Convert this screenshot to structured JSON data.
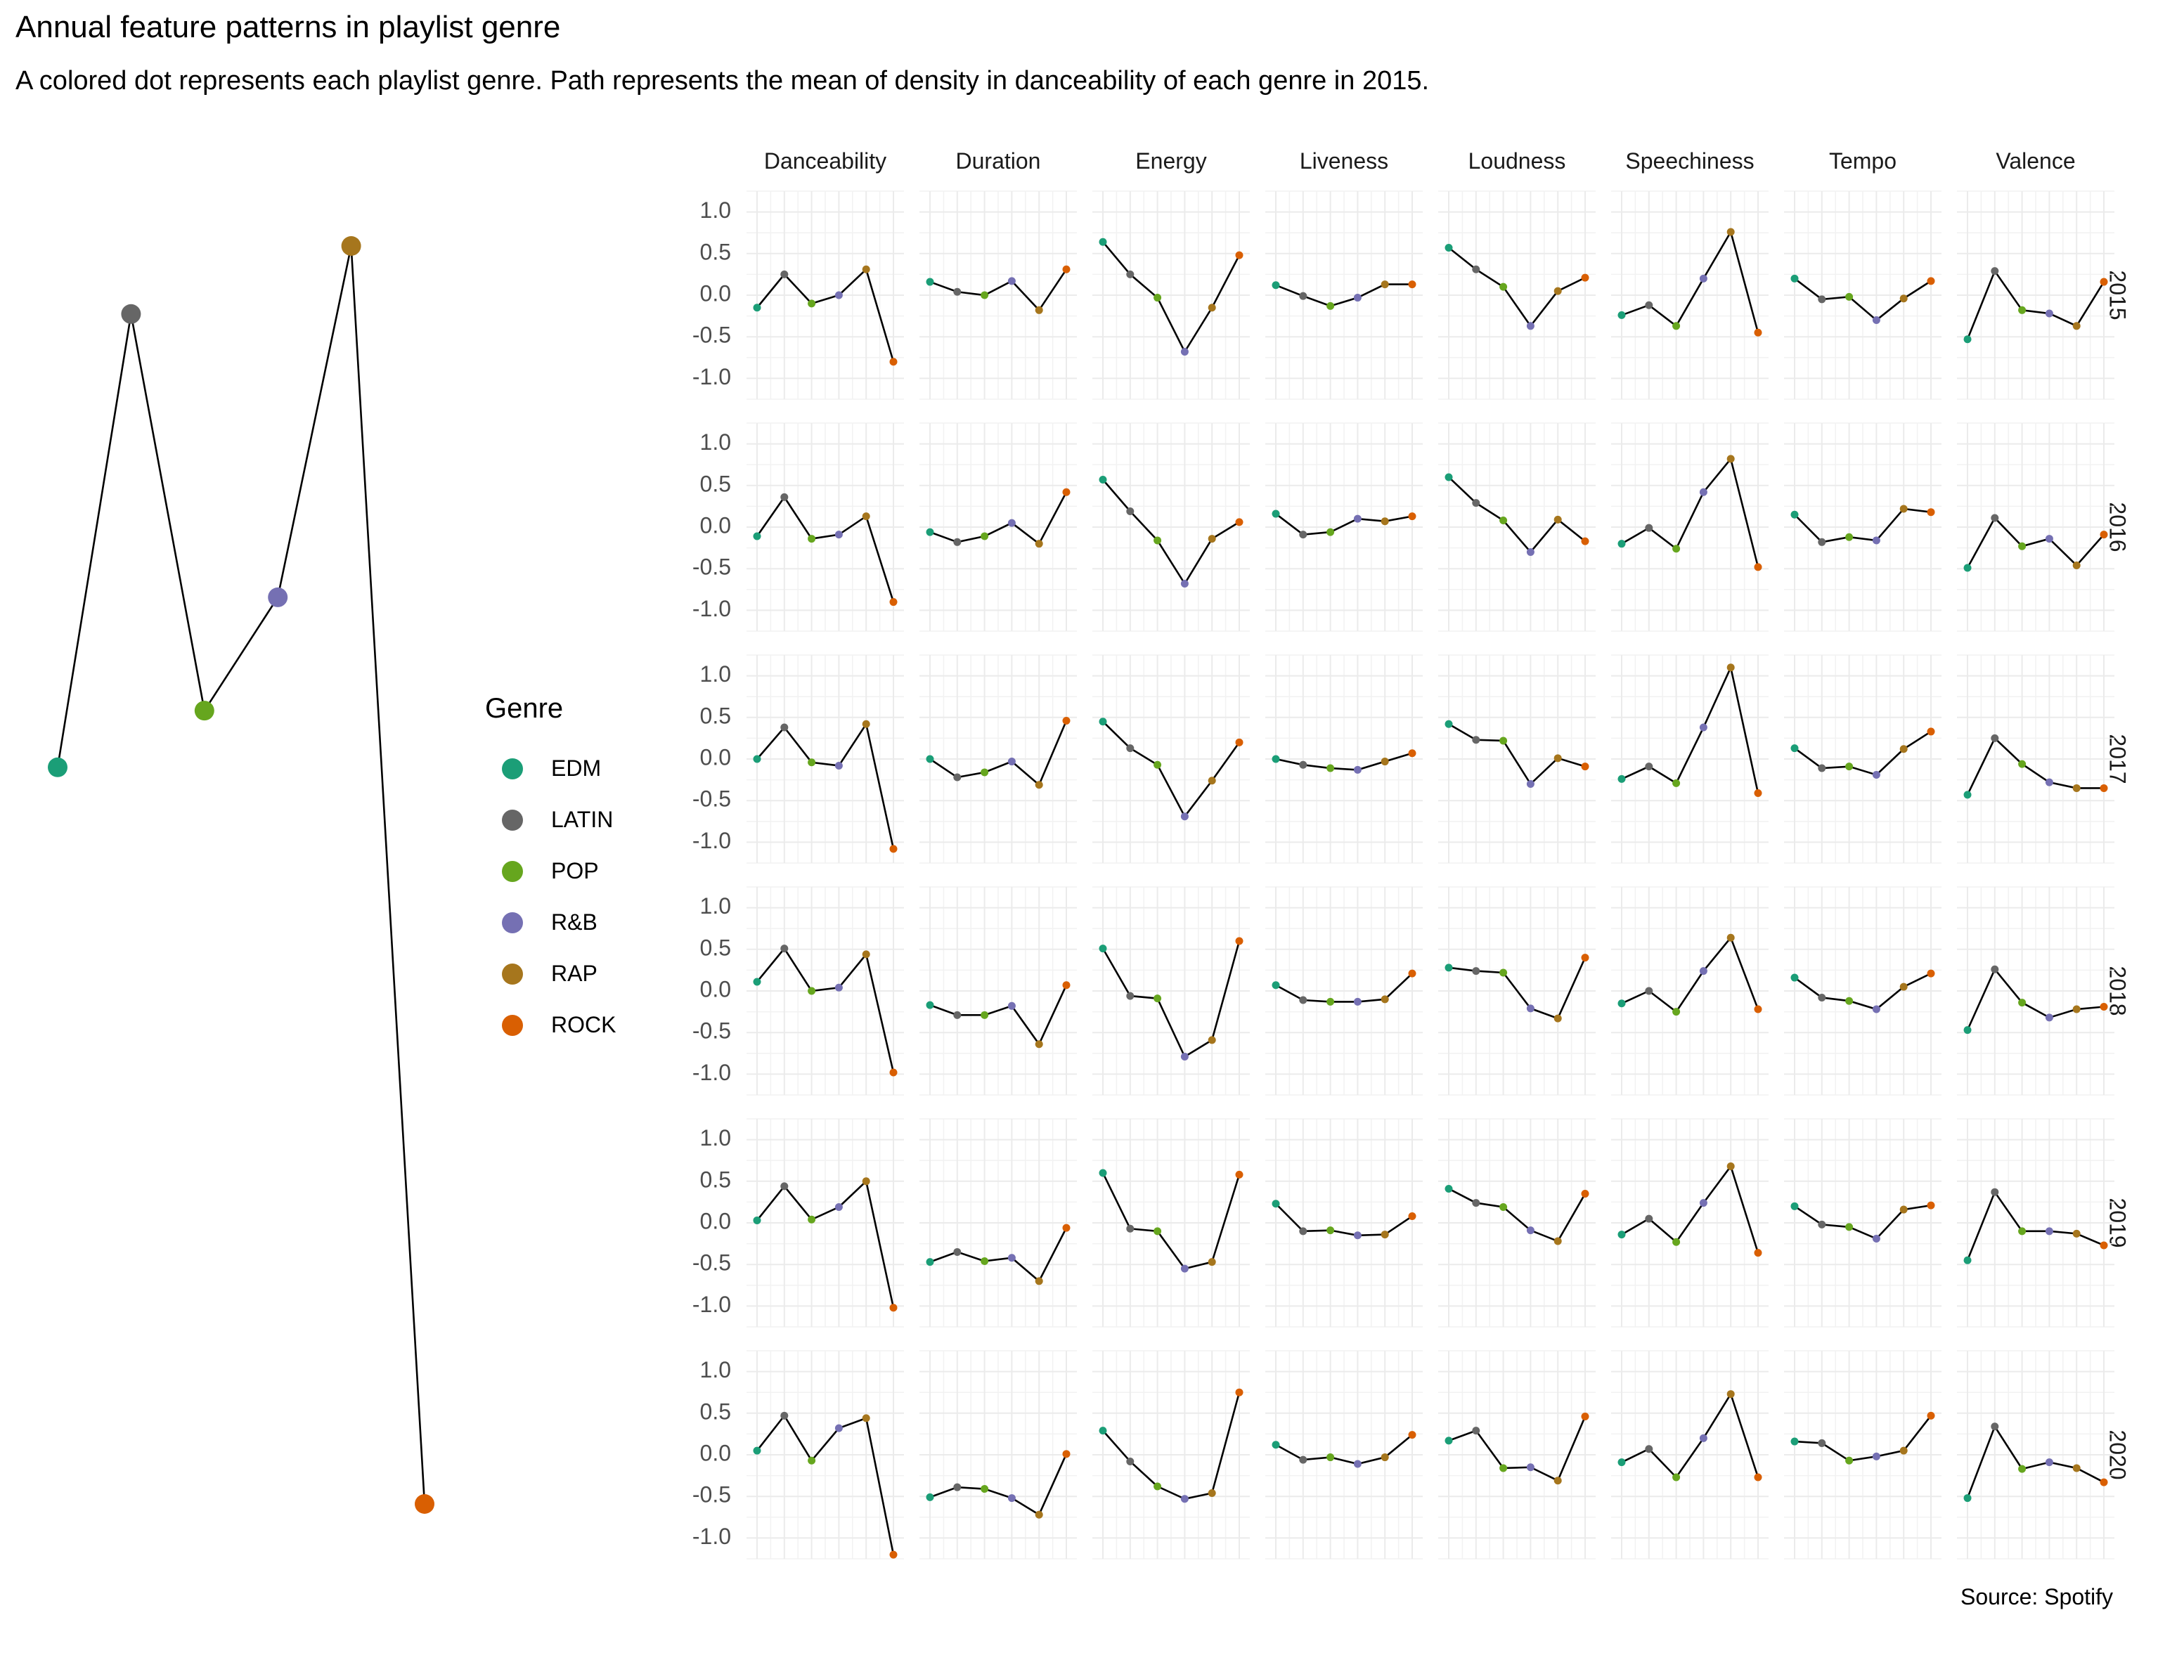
{
  "title": "Annual feature patterns in playlist genre",
  "subtitle": "A colored dot represents each playlist genre. Path represents the mean of density in danceability of each genre in 2015.",
  "caption": "Source: Spotify",
  "legend": {
    "title": "Genre",
    "items": [
      {
        "label": "EDM",
        "color": "#1B9E77"
      },
      {
        "label": "LATIN",
        "color": "#666666"
      },
      {
        "label": "POP",
        "color": "#66A61E"
      },
      {
        "label": "R&B",
        "color": "#7570B3"
      },
      {
        "label": "RAP",
        "color": "#A6761D"
      },
      {
        "label": "ROCK",
        "color": "#D95F02"
      }
    ]
  },
  "chart_data": [
    {
      "type": "line",
      "description_of_marks": "genre dots connected by path",
      "categories": [
        "EDM",
        "LATIN",
        "POP",
        "R&B",
        "RAP",
        "ROCK"
      ],
      "values": [
        -0.15,
        0.25,
        -0.1,
        0.0,
        0.31,
        -0.8
      ],
      "axes_visible": false
    },
    {
      "type": "line",
      "facet": "grid",
      "categories": [
        "EDM",
        "LATIN",
        "POP",
        "R&B",
        "RAP",
        "ROCK"
      ],
      "columns": [
        "Danceability",
        "Duration",
        "Energy",
        "Liveness",
        "Loudness",
        "Speechiness",
        "Tempo",
        "Valence"
      ],
      "rows": [
        "2015",
        "2016",
        "2017",
        "2018",
        "2019",
        "2020"
      ],
      "ylim": [
        -1.25,
        1.25
      ],
      "yticks": [
        1.0,
        0.5,
        0.0,
        -0.5,
        -1.0
      ],
      "ytick_labels": [
        "1.0",
        "0.5",
        "0.0",
        "-0.5",
        "-1.0"
      ],
      "grid": true,
      "values": {
        "2015": {
          "Danceability": [
            -0.15,
            0.25,
            -0.1,
            0.0,
            0.31,
            -0.8
          ],
          "Duration": [
            0.16,
            0.04,
            0.0,
            0.17,
            -0.18,
            0.31
          ],
          "Energy": [
            0.64,
            0.25,
            -0.03,
            -0.68,
            -0.15,
            0.48
          ],
          "Liveness": [
            0.12,
            -0.01,
            -0.13,
            -0.03,
            0.13,
            0.13
          ],
          "Loudness": [
            0.57,
            0.31,
            0.1,
            -0.37,
            0.05,
            0.21
          ],
          "Speechiness": [
            -0.24,
            -0.12,
            -0.37,
            0.2,
            0.76,
            -0.45
          ],
          "Tempo": [
            0.2,
            -0.05,
            -0.02,
            -0.3,
            -0.04,
            0.17
          ],
          "Valence": [
            -0.53,
            0.29,
            -0.18,
            -0.22,
            -0.37,
            0.16
          ]
        },
        "2016": {
          "Danceability": [
            -0.11,
            0.36,
            -0.14,
            -0.09,
            0.13,
            -0.9
          ],
          "Duration": [
            -0.06,
            -0.18,
            -0.11,
            0.05,
            -0.2,
            0.42
          ],
          "Energy": [
            0.57,
            0.19,
            -0.16,
            -0.68,
            -0.14,
            0.06
          ],
          "Liveness": [
            0.16,
            -0.09,
            -0.06,
            0.1,
            0.07,
            0.13
          ],
          "Loudness": [
            0.6,
            0.29,
            0.08,
            -0.3,
            0.09,
            -0.17
          ],
          "Speechiness": [
            -0.2,
            -0.01,
            -0.26,
            0.42,
            0.82,
            -0.48
          ],
          "Tempo": [
            0.15,
            -0.18,
            -0.12,
            -0.16,
            0.22,
            0.18
          ],
          "Valence": [
            -0.49,
            0.11,
            -0.23,
            -0.14,
            -0.46,
            -0.09
          ]
        },
        "2017": {
          "Danceability": [
            0.0,
            0.38,
            -0.04,
            -0.08,
            0.42,
            -1.08
          ],
          "Duration": [
            0.0,
            -0.22,
            -0.16,
            -0.03,
            -0.31,
            0.46
          ],
          "Energy": [
            0.45,
            0.13,
            -0.07,
            -0.69,
            -0.26,
            0.2
          ],
          "Liveness": [
            0.0,
            -0.07,
            -0.11,
            -0.13,
            -0.03,
            0.07
          ],
          "Loudness": [
            0.42,
            0.23,
            0.22,
            -0.3,
            0.01,
            -0.09
          ],
          "Speechiness": [
            -0.24,
            -0.09,
            -0.29,
            0.38,
            1.1,
            -0.41
          ],
          "Tempo": [
            0.13,
            -0.11,
            -0.09,
            -0.19,
            0.12,
            0.33
          ],
          "Valence": [
            -0.43,
            0.25,
            -0.06,
            -0.28,
            -0.35,
            -0.35
          ]
        },
        "2018": {
          "Danceability": [
            0.11,
            0.51,
            0.0,
            0.04,
            0.44,
            -0.98
          ],
          "Duration": [
            -0.17,
            -0.29,
            -0.29,
            -0.18,
            -0.64,
            0.07
          ],
          "Energy": [
            0.51,
            -0.06,
            -0.09,
            -0.79,
            -0.59,
            0.6
          ],
          "Liveness": [
            0.07,
            -0.11,
            -0.13,
            -0.13,
            -0.1,
            0.21
          ],
          "Loudness": [
            0.28,
            0.24,
            0.22,
            -0.21,
            -0.33,
            0.4
          ],
          "Speechiness": [
            -0.15,
            0.0,
            -0.25,
            0.24,
            0.64,
            -0.22
          ],
          "Tempo": [
            0.16,
            -0.08,
            -0.12,
            -0.22,
            0.05,
            0.21
          ],
          "Valence": [
            -0.47,
            0.26,
            -0.14,
            -0.32,
            -0.22,
            -0.19
          ]
        },
        "2019": {
          "Danceability": [
            0.03,
            0.44,
            0.04,
            0.19,
            0.5,
            -1.02
          ],
          "Duration": [
            -0.47,
            -0.35,
            -0.46,
            -0.42,
            -0.7,
            -0.06
          ],
          "Energy": [
            0.6,
            -0.07,
            -0.1,
            -0.55,
            -0.47,
            0.58
          ],
          "Liveness": [
            0.23,
            -0.1,
            -0.09,
            -0.15,
            -0.14,
            0.08
          ],
          "Loudness": [
            0.41,
            0.24,
            0.19,
            -0.09,
            -0.22,
            0.35
          ],
          "Speechiness": [
            -0.14,
            0.05,
            -0.23,
            0.24,
            0.68,
            -0.36
          ],
          "Tempo": [
            0.2,
            -0.02,
            -0.05,
            -0.19,
            0.16,
            0.21
          ],
          "Valence": [
            -0.45,
            0.37,
            -0.1,
            -0.1,
            -0.13,
            -0.27
          ]
        },
        "2020": {
          "Danceability": [
            0.05,
            0.47,
            -0.07,
            0.32,
            0.44,
            -1.2
          ],
          "Duration": [
            -0.51,
            -0.39,
            -0.41,
            -0.52,
            -0.72,
            0.01
          ],
          "Energy": [
            0.29,
            -0.08,
            -0.38,
            -0.53,
            -0.46,
            0.75
          ],
          "Liveness": [
            0.12,
            -0.06,
            -0.03,
            -0.11,
            -0.03,
            0.24
          ],
          "Loudness": [
            0.17,
            0.29,
            -0.16,
            -0.15,
            -0.31,
            0.46
          ],
          "Speechiness": [
            -0.09,
            0.07,
            -0.27,
            0.2,
            0.73,
            -0.27
          ],
          "Tempo": [
            0.16,
            0.14,
            -0.07,
            -0.02,
            0.05,
            0.47
          ],
          "Valence": [
            -0.52,
            0.34,
            -0.17,
            -0.09,
            -0.16,
            -0.33
          ]
        }
      }
    }
  ]
}
